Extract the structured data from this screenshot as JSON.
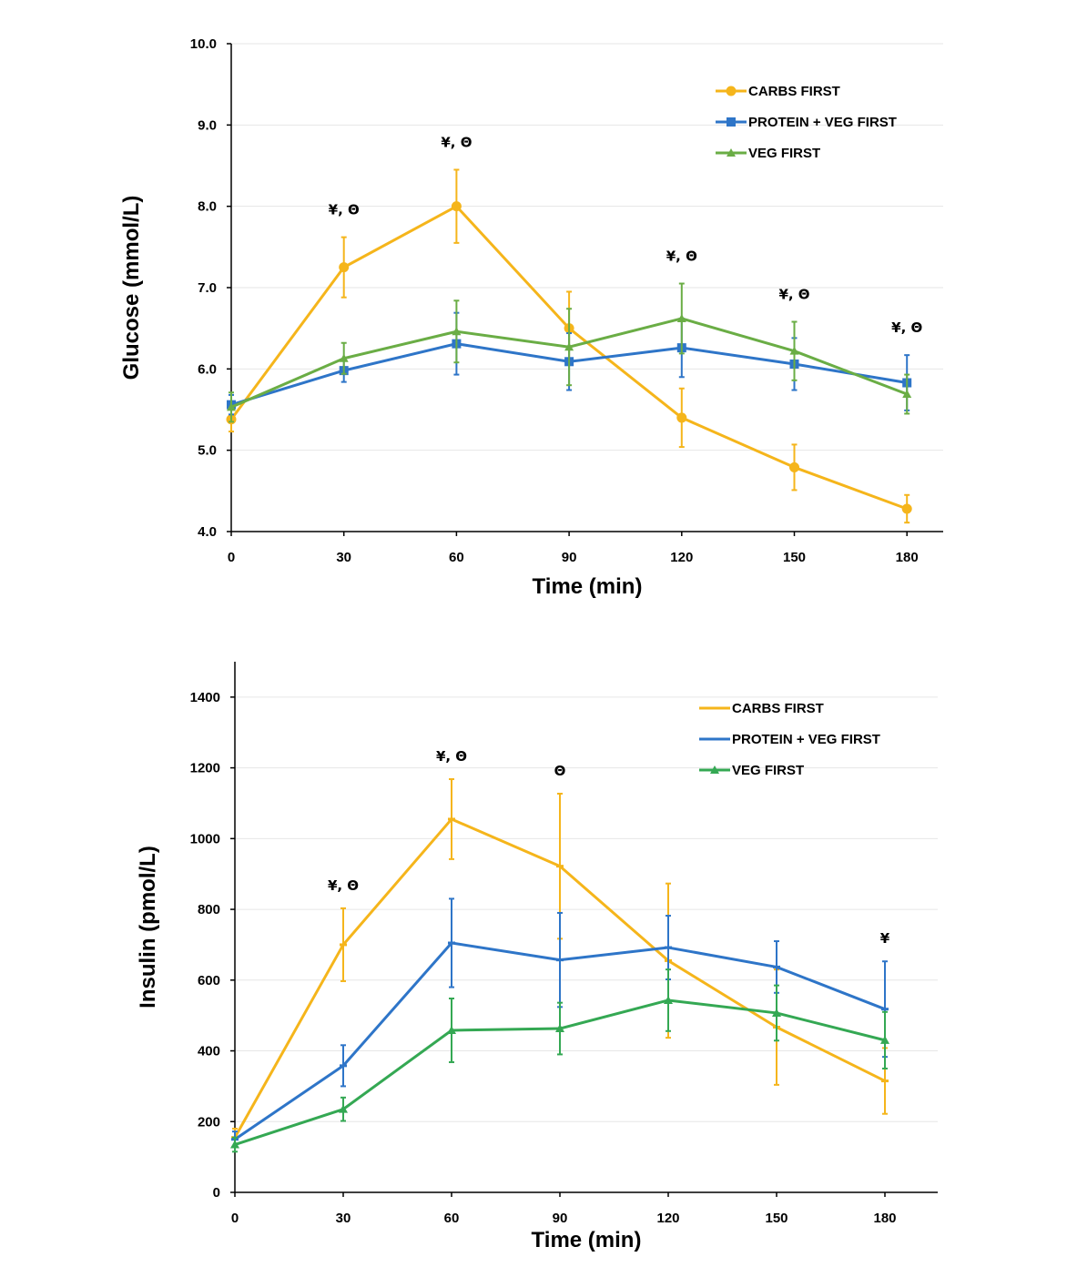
{
  "chart_data": [
    {
      "type": "line",
      "title": "",
      "xlabel": "Time (min)",
      "ylabel": "Glucose (mmol/L)",
      "x": [
        0,
        30,
        60,
        90,
        120,
        150,
        180
      ],
      "x_tick_labels": [
        "0",
        "30",
        "60",
        "90",
        "120",
        "150",
        "180"
      ],
      "ylim": [
        4.0,
        10.0
      ],
      "y_tick_labels": [
        "4.0",
        "5.0",
        "6.0",
        "7.0",
        "8.0",
        "9.0",
        "10.0"
      ],
      "grid": true,
      "legend_position": "top-right",
      "series": [
        {
          "name": "CARBS FIRST",
          "color": "#F5B51B",
          "marker": "circle",
          "values": [
            5.38,
            7.25,
            8.0,
            6.5,
            5.4,
            4.79,
            4.28
          ],
          "errors": [
            0.15,
            0.37,
            0.45,
            0.45,
            0.36,
            0.28,
            0.17
          ]
        },
        {
          "name": "PROTEIN + VEG FIRST",
          "color": "#2E75C8",
          "marker": "square",
          "values": [
            5.56,
            5.98,
            6.31,
            6.09,
            6.26,
            6.06,
            5.83
          ],
          "errors": [
            0.12,
            0.14,
            0.38,
            0.35,
            0.36,
            0.32,
            0.34
          ]
        },
        {
          "name": "VEG FIRST",
          "color": "#6AAD45",
          "marker": "triangle",
          "values": [
            5.53,
            6.13,
            6.46,
            6.27,
            6.62,
            6.22,
            5.69
          ],
          "errors": [
            0.18,
            0.19,
            0.38,
            0.47,
            0.43,
            0.36,
            0.24
          ]
        }
      ],
      "annotations": [
        {
          "x": 30,
          "text": "¥, Θ"
        },
        {
          "x": 60,
          "text": "¥, Θ"
        },
        {
          "x": 120,
          "text": "¥, Θ"
        },
        {
          "x": 150,
          "text": "¥, Θ"
        },
        {
          "x": 180,
          "text": "¥, Θ"
        }
      ]
    },
    {
      "type": "line",
      "title": "",
      "xlabel": "Time (min)",
      "ylabel": "Insulin (pmol/L)",
      "x": [
        0,
        30,
        60,
        90,
        120,
        150,
        180
      ],
      "x_tick_labels": [
        "0",
        "30",
        "60",
        "90",
        "120",
        "150",
        "180"
      ],
      "ylim": [
        0,
        1500
      ],
      "y_tick_labels": [
        "0",
        "200",
        "400",
        "600",
        "800",
        "1000",
        "1200",
        "1400"
      ],
      "grid": true,
      "legend_position": "top-right",
      "series": [
        {
          "name": "CARBS FIRST",
          "color": "#F5B51B",
          "marker": "dash",
          "values": [
            155,
            700,
            1055,
            922,
            655,
            467,
            315
          ],
          "errors": [
            25,
            103,
            113,
            205,
            218,
            163,
            93
          ]
        },
        {
          "name": "PROTEIN + VEG FIRST",
          "color": "#2E75C8",
          "marker": "dash",
          "values": [
            150,
            358,
            705,
            657,
            692,
            637,
            518
          ],
          "errors": [
            22,
            58,
            125,
            133,
            90,
            73,
            135
          ]
        },
        {
          "name": "VEG FIRST",
          "color": "#34A853",
          "marker": "triangle",
          "values": [
            135,
            235,
            458,
            463,
            543,
            507,
            430
          ],
          "errors": [
            20,
            33,
            90,
            73,
            87,
            78,
            80
          ]
        }
      ],
      "annotations": [
        {
          "x": 30,
          "text": "¥, Θ"
        },
        {
          "x": 60,
          "text": "¥, Θ"
        },
        {
          "x": 90,
          "text": "Θ"
        },
        {
          "x": 180,
          "text": "¥"
        }
      ]
    }
  ]
}
